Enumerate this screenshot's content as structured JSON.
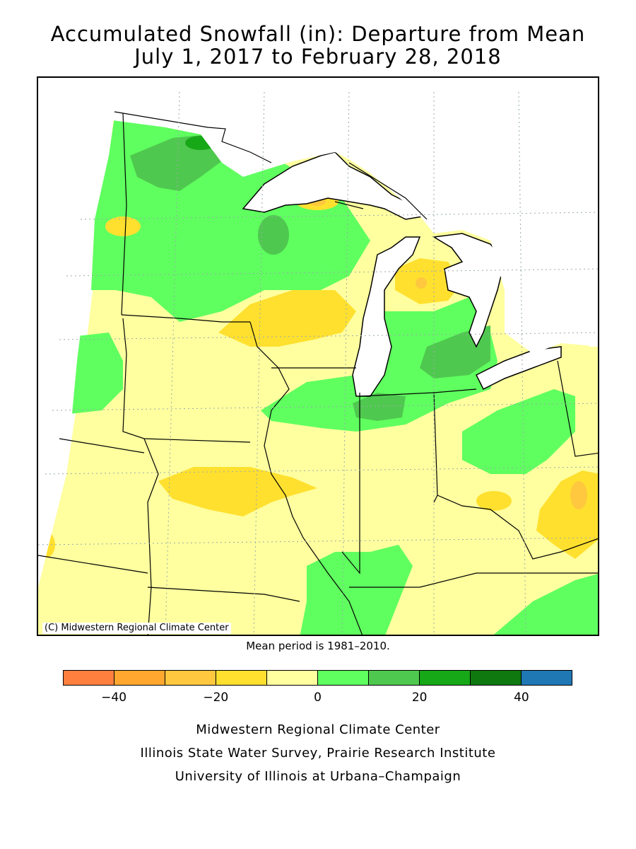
{
  "title_line1": "Accumulated Snowfall (in): Departure from Mean",
  "title_line2": "July 1, 2017 to February 28, 2018",
  "copyright": "(C) Midwestern Regional Climate Center",
  "mean_note": "Mean period is 1981–2010.",
  "legend": {
    "colors": [
      "#ff7f3f",
      "#ffa72f",
      "#ffc83f",
      "#ffe02f",
      "#ffff9f",
      "#5fff5f",
      "#4fc84f",
      "#17a817",
      "#0f780f",
      "#1f77b4"
    ],
    "ticks": [
      {
        "label": "−40",
        "value": -40
      },
      {
        "label": "−20",
        "value": -20
      },
      {
        "label": "0",
        "value": 0
      },
      {
        "label": "20",
        "value": 20
      },
      {
        "label": "40",
        "value": 40
      }
    ],
    "range": [
      -50,
      50
    ]
  },
  "credits": [
    "Midwestern Regional Climate Center",
    "Illinois State Water Survey, Prairie Research Institute",
    "University of Illinois at Urbana–Champaign"
  ],
  "map_colors": {
    "minus_30_to_20": "#ffc83f",
    "minus_20_to_10": "#ffe02f",
    "minus_10_to_0": "#ffff9f",
    "0_to_10": "#5fff5f",
    "10_to_20": "#4fc84f",
    "20_to_30": "#17a817",
    "water": "#ffffff"
  }
}
